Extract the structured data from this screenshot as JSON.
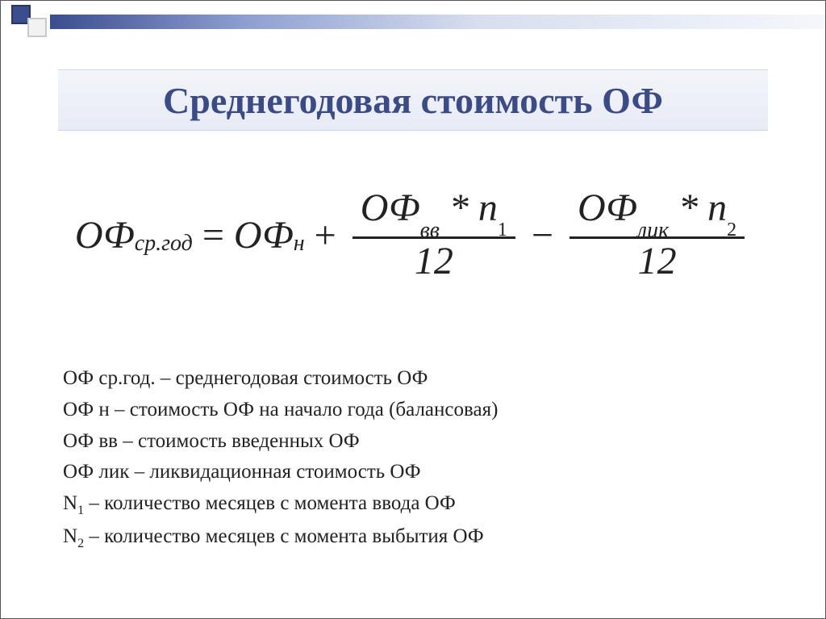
{
  "colors": {
    "title_text": "#3a4b87",
    "title_band_top": "#f3f5fa",
    "title_band_bottom": "#e7ebf5",
    "gradient_start": "#3a4d8f",
    "gradient_end": "#f5f7fb",
    "text": "#222222",
    "square_dark": "#3a4d8f",
    "square_light": "#f2f2f2"
  },
  "typography": {
    "title_fontsize_pt": 34,
    "formula_fontsize_pt": 36,
    "legend_fontsize_pt": 18,
    "font_family": "Times New Roman"
  },
  "title": "Среднегодовая стоимость ОФ",
  "formula": {
    "lhs_base": "ОФ",
    "lhs_sub": "ср.год",
    "eq": "=",
    "term1_base": "ОФ",
    "term1_sub": "н",
    "plus": "+",
    "frac1_num_a": "ОФ",
    "frac1_num_a_sub": "вв",
    "frac1_num_star": "*",
    "frac1_num_b": "n",
    "frac1_num_b_sub": "1",
    "frac1_den": "12",
    "minus": "−",
    "frac2_num_a": "ОФ",
    "frac2_num_a_sub": "лик",
    "frac2_num_star": "*",
    "frac2_num_b": "n",
    "frac2_num_b_sub": "2",
    "frac2_den": "12"
  },
  "legend": {
    "l1_sym": "ОФ ср.год.",
    "l1_text": " – среднегодовая стоимость ОФ",
    "l2_sym": "ОФ н",
    "l2_text": " – стоимость ОФ на начало года (балансовая)",
    "l3_sym": "ОФ вв",
    "l3_text": " – стоимость введенных ОФ",
    "l4_sym": "ОФ лик",
    "l4_text": " – ликвидационная стоимость ОФ",
    "l5_sym_base": "N",
    "l5_sym_sub": "1",
    "l5_text": " – количество месяцев с момента ввода ОФ",
    "l6_sym_base": "N",
    "l6_sym_sub": "2",
    "l6_text": " – количество месяцев с момента выбытия ОФ"
  }
}
